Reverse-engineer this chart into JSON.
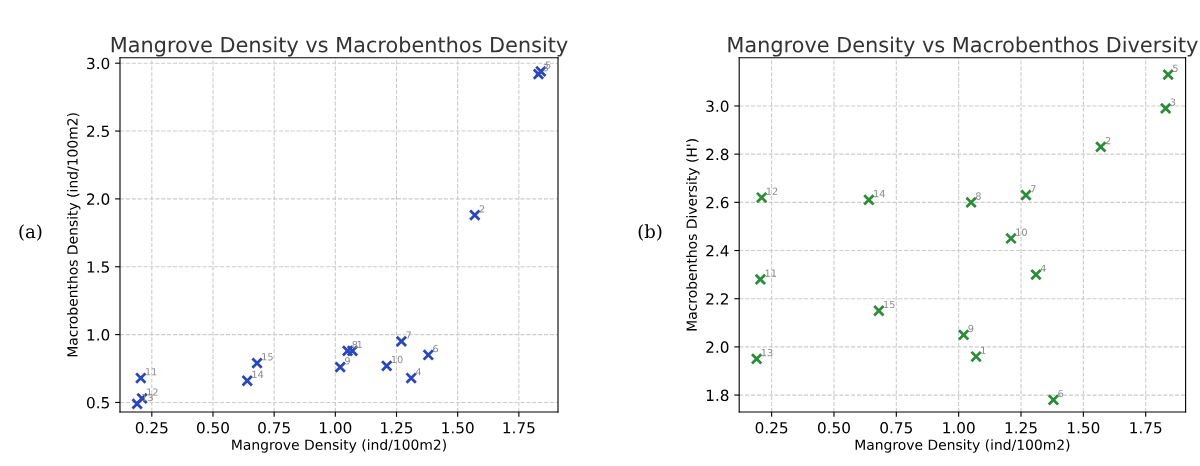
{
  "chart_data": [
    {
      "type": "scatter",
      "title": "Mangrove Density vs Macrobenthos Density",
      "xlabel": "Mangrove Density (ind/100m2)",
      "ylabel": "Macrobenthos Density (ind/100m2)",
      "x": [
        1.07,
        1.57,
        1.83,
        1.31,
        1.84,
        1.38,
        1.27,
        1.05,
        1.02,
        1.21,
        0.205,
        0.21,
        0.19,
        0.64,
        0.68
      ],
      "series": [
        {
          "color": "#2a47b8",
          "values": [
            0.88,
            1.88,
            2.92,
            0.68,
            2.94,
            0.85,
            0.95,
            0.88,
            0.76,
            0.77,
            0.68,
            0.53,
            0.49,
            0.66,
            0.79
          ]
        }
      ],
      "xlim": [
        0.12,
        1.91
      ],
      "xticks": [
        {
          "value": 0.25,
          "label": "0.25"
        },
        {
          "value": 0.5,
          "label": "0.50"
        },
        {
          "value": 0.75,
          "label": "0.75"
        },
        {
          "value": 1.0,
          "label": "1.00"
        },
        {
          "value": 1.25,
          "label": "1.25"
        },
        {
          "value": 1.5,
          "label": "1.50"
        },
        {
          "value": 1.75,
          "label": "1.75"
        }
      ],
      "ylim": [
        0.43,
        3.04
      ],
      "yticks": [
        0.5,
        {
          "value": 1.0,
          "label": "1.0"
        },
        1.5,
        {
          "value": 2.0,
          "label": "2.0"
        },
        2.5,
        {
          "value": 3.0,
          "label": "3.0"
        }
      ],
      "grid": true,
      "marker": "cross",
      "annotations": [
        {
          "text": "1",
          "x": 1.07,
          "y": 0.88
        },
        {
          "text": "2",
          "x": 1.57,
          "y": 1.88
        },
        {
          "text": "3",
          "x": 1.83,
          "y": 2.92
        },
        {
          "text": "4",
          "x": 1.31,
          "y": 0.68
        },
        {
          "text": "5",
          "x": 1.84,
          "y": 2.94
        },
        {
          "text": "6",
          "x": 1.38,
          "y": 0.85
        },
        {
          "text": "7",
          "x": 1.27,
          "y": 0.95
        },
        {
          "text": "8",
          "x": 1.05,
          "y": 0.88
        },
        {
          "text": "9",
          "x": 1.02,
          "y": 0.76
        },
        {
          "text": "10",
          "x": 1.21,
          "y": 0.77
        },
        {
          "text": "11",
          "x": 0.205,
          "y": 0.68
        },
        {
          "text": "12",
          "x": 0.21,
          "y": 0.53
        },
        {
          "text": "13",
          "x": 0.19,
          "y": 0.49
        },
        {
          "text": "14",
          "x": 0.64,
          "y": 0.66
        },
        {
          "text": "15",
          "x": 0.68,
          "y": 0.79
        },
        "(a)"
      ]
    },
    {
      "type": "scatter",
      "title": "Mangrove Density vs Macrobenthos Diversity",
      "xlabel": "Mangrove Density (ind/100m2)",
      "ylabel": "Macrobenthos Diversity (H')",
      "x": [
        1.07,
        1.57,
        1.83,
        1.31,
        1.84,
        1.38,
        1.27,
        1.05,
        1.02,
        1.21,
        0.205,
        0.21,
        0.19,
        0.64,
        0.68
      ],
      "series": [
        {
          "color": "#2e8b3a",
          "values": [
            1.96,
            2.83,
            2.99,
            2.3,
            3.13,
            1.78,
            2.63,
            2.6,
            2.05,
            2.45,
            2.28,
            2.62,
            1.95,
            2.61,
            2.15
          ]
        }
      ],
      "xlim": [
        0.12,
        1.91
      ],
      "xticks": [
        {
          "value": 0.25,
          "label": "0.25"
        },
        {
          "value": 0.5,
          "label": "0.50"
        },
        {
          "value": 0.75,
          "label": "0.75"
        },
        {
          "value": 1.0,
          "label": "1.00"
        },
        {
          "value": 1.25,
          "label": "1.25"
        },
        {
          "value": 1.5,
          "label": "1.50"
        },
        {
          "value": 1.75,
          "label": "1.75"
        }
      ],
      "ylim": [
        1.73,
        3.2
      ],
      "yticks": [
        {
          "value": 1.8,
          "label": "1.8"
        },
        {
          "value": 2.0,
          "label": "2.0"
        },
        {
          "value": 2.2,
          "label": "2.2"
        },
        {
          "value": 2.4,
          "label": "2.4"
        },
        {
          "value": 2.6,
          "label": "2.6"
        },
        {
          "value": 2.8,
          "label": "2.8"
        },
        {
          "value": 3.0,
          "label": "3.0"
        }
      ],
      "grid": true,
      "marker": "cross",
      "annotations": [
        {
          "text": "1",
          "x": 1.07,
          "y": 1.96
        },
        {
          "text": "2",
          "x": 1.57,
          "y": 2.83
        },
        {
          "text": "3",
          "x": 1.83,
          "y": 2.99
        },
        {
          "text": "4",
          "x": 1.31,
          "y": 2.3
        },
        {
          "text": "5",
          "x": 1.84,
          "y": 3.13
        },
        {
          "text": "6",
          "x": 1.38,
          "y": 1.78
        },
        {
          "text": "7",
          "x": 1.27,
          "y": 2.63
        },
        {
          "text": "8",
          "x": 1.05,
          "y": 2.6
        },
        {
          "text": "9",
          "x": 1.02,
          "y": 2.05
        },
        {
          "text": "10",
          "x": 1.21,
          "y": 2.45
        },
        {
          "text": "11",
          "x": 0.205,
          "y": 2.28
        },
        {
          "text": "12",
          "x": 0.21,
          "y": 2.62
        },
        {
          "text": "13",
          "x": 0.19,
          "y": 1.95
        },
        {
          "text": "14",
          "x": 0.64,
          "y": 2.61
        },
        {
          "text": "15",
          "x": 0.68,
          "y": 2.15
        },
        "(b)"
      ]
    }
  ]
}
